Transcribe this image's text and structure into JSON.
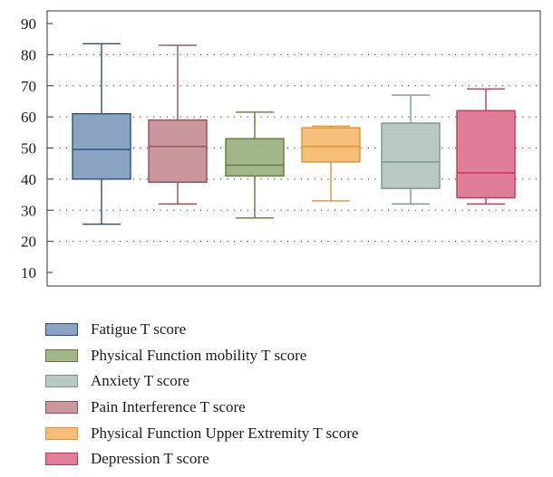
{
  "chart_data": {
    "type": "box",
    "title": "",
    "xlabel": "",
    "ylabel": "",
    "ylim": [
      5,
      95
    ],
    "yticks": [
      10,
      20,
      30,
      40,
      50,
      60,
      70,
      80,
      90
    ],
    "grid": "horizontal-dotted",
    "legend_position": "bottom",
    "series": [
      {
        "name": "Fatigue T score",
        "min": 25.5,
        "q1": 40,
        "median": 49.5,
        "q3": 61,
        "max": 83.5,
        "fill": "#8aa3c2",
        "stroke": "#2d4f7f"
      },
      {
        "name": "Pain Interference T score",
        "min": 32,
        "q1": 39,
        "median": 50.5,
        "q3": 59,
        "max": 83,
        "fill": "#c9979d",
        "stroke": "#9a4d56"
      },
      {
        "name": "Physical Function mobility T score",
        "min": 27.5,
        "q1": 41,
        "median": 44.5,
        "q3": 53,
        "max": 61.5,
        "fill": "#a3b68a",
        "stroke": "#5c7a3a"
      },
      {
        "name": "Physical Function Upper Extremity T score",
        "min": 33,
        "q1": 45.5,
        "median": 50.5,
        "q3": 56.5,
        "max": 57,
        "fill": "#f5bf7a",
        "stroke": "#e58f2a"
      },
      {
        "name": "Anxiety T score",
        "min": 32,
        "q1": 37,
        "median": 45.5,
        "q3": 58,
        "max": 67,
        "fill": "#b8c9c4",
        "stroke": "#7a968f"
      },
      {
        "name": "Depression T score",
        "min": 32,
        "q1": 34,
        "median": 42,
        "q3": 62,
        "max": 69,
        "fill": "#e07e99",
        "stroke": "#c8345e"
      }
    ],
    "legend_order": [
      0,
      2,
      4,
      1,
      3,
      5
    ]
  }
}
